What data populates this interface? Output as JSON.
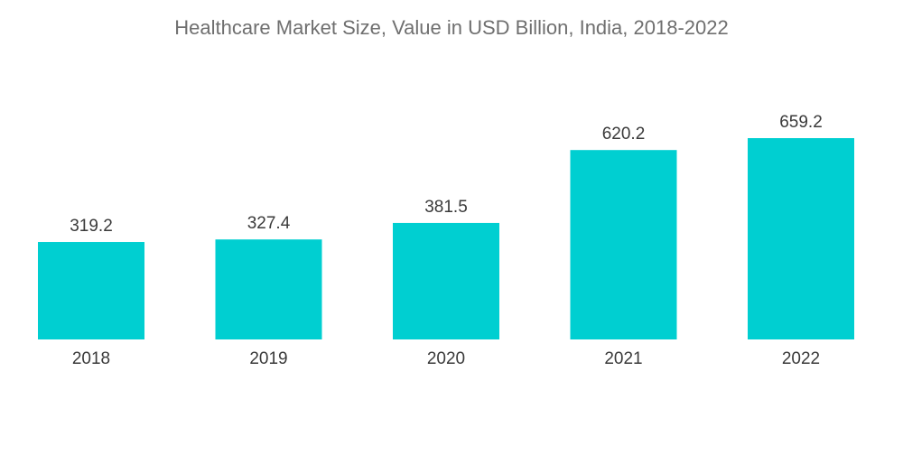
{
  "chart_data": {
    "type": "bar",
    "title": "Healthcare Market Size, Value in USD Billion, India, 2018-2022",
    "categories": [
      "2018",
      "2019",
      "2020",
      "2021",
      "2022"
    ],
    "values": [
      319.2,
      327.4,
      381.5,
      620.2,
      659.2
    ],
    "value_labels": [
      "319.2",
      "327.4",
      "381.5",
      "620.2",
      "659.2"
    ],
    "xlabel": "",
    "ylabel": "",
    "ylim": [
      0,
      700
    ],
    "grid": false,
    "bar_color": "#00cfd1"
  }
}
